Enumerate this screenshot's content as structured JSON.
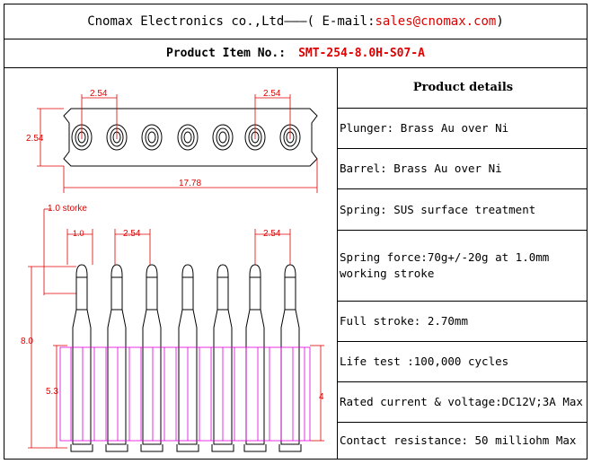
{
  "header": {
    "company": "Cnomax Electronics co.,Ltd———( E-mail: ",
    "email": "sales@cnomax.com",
    "close": ")",
    "item_label": "Product Item No.:",
    "item_number": "SMT-254-8.0H-S07-A"
  },
  "drawing": {
    "dims": {
      "pitch_top_left": "2.54",
      "pitch_top_right": "2.54",
      "height_top": "2.54",
      "total_width": "17.78",
      "stroke": "1.0 storke",
      "plunger_dia": "1.0",
      "pitch_side_left": "2.54",
      "pitch_side_right": "2.54",
      "total_height": "8.0",
      "barrel_height": "5.3",
      "body_height": "4"
    }
  },
  "details": {
    "title": "Product details",
    "rows": [
      "Plunger: Brass Au over Ni",
      "Barrel: Brass Au over Ni",
      "Spring: SUS surface treatment",
      "Spring force:70g+/-20g at 1.0mm working stroke",
      "Full stroke: 2.70mm",
      "Life test :100,000 cycles",
      "Rated current & voltage:DC12V;3A Max",
      "Contact resistance: 50 milliohm Max"
    ]
  },
  "colors": {
    "email": "#e00000",
    "part_number": "#e00000",
    "dimension": "#e00000",
    "body_outline": "#e000e0"
  }
}
